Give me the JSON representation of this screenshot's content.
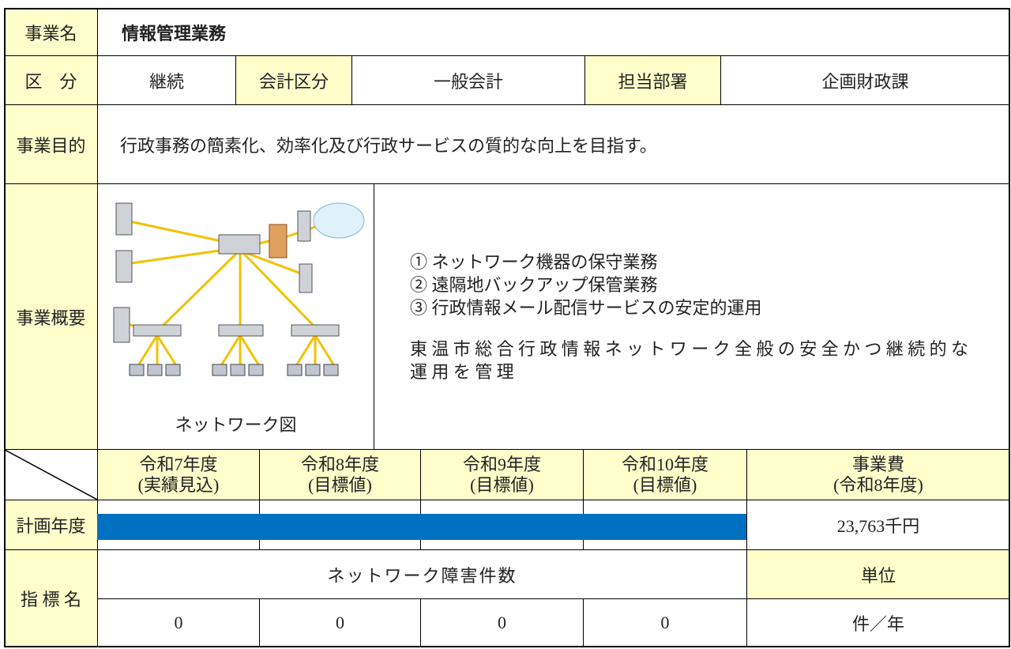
{
  "header": {
    "label": "事業名",
    "value": "情報管理業務"
  },
  "classification": {
    "label": "区　分",
    "value": "継続",
    "accounting_label": "会計区分",
    "accounting_value": "一般会計",
    "dept_label": "担当部署",
    "dept_value": "企画財政課"
  },
  "purpose": {
    "label": "事業目的",
    "text": "行政事務の簡素化、効率化及び行政サービスの質的な向上を目指す。"
  },
  "overview": {
    "label": "事業概要",
    "image_caption": "ネットワーク図",
    "items": [
      "① ネットワーク機器の保守業務",
      "② 遠隔地バックアップ保管業務",
      "③ 行政情報メール配信サービスの安定的運用"
    ],
    "note": "東温市総合行政情報ネットワーク全般の安全かつ継続的な運用を管理"
  },
  "plan": {
    "row_label": "計画年度",
    "years": [
      {
        "year": "令和7年度",
        "kind": "(実績見込)"
      },
      {
        "year": "令和8年度",
        "kind": "(目標値)"
      },
      {
        "year": "令和9年度",
        "kind": "(目標値)"
      },
      {
        "year": "令和10年度",
        "kind": "(目標値)"
      }
    ],
    "cost_label": "事業費",
    "cost_year": "(令和8年度)",
    "cost": "23,763千円"
  },
  "indicator": {
    "label": "指 標 名",
    "name": "ネットワーク障害件数",
    "unit_label": "単位",
    "values": [
      0,
      0,
      0,
      0
    ],
    "unit": "件／年"
  }
}
